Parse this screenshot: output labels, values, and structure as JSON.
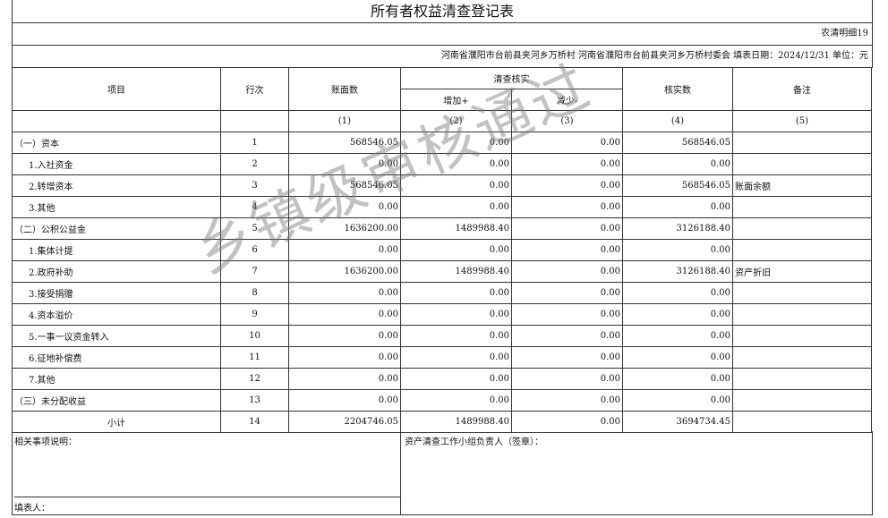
{
  "title": "所有者权益清查登记表",
  "code": "农清明细19",
  "info": "河南省濮阳市台前县夹河乡万桥村 河南省濮阳市台前县夹河乡万桥村委会 填表日期：2024/12/31 单位：元",
  "headers": {
    "item": "项目",
    "line": "行次",
    "book": "账面数",
    "check": "清查核实",
    "inc": "增加+",
    "dec": "减少-",
    "verified": "核实数",
    "note": "备注"
  },
  "colnums": [
    "",
    "",
    "(1)",
    "(2)",
    "(3)",
    "(4)",
    "(5)"
  ],
  "rows": [
    {
      "item": "（一）资本",
      "line": "1",
      "book": "568546.05",
      "inc": "0.00",
      "dec": "0.00",
      "ver": "568546.05",
      "note": "",
      "ind": false
    },
    {
      "item": "1.入社资金",
      "line": "2",
      "book": "0.00",
      "inc": "0.00",
      "dec": "0.00",
      "ver": "0.00",
      "note": "",
      "ind": true
    },
    {
      "item": "2.转增资本",
      "line": "3",
      "book": "568546.05",
      "inc": "0.00",
      "dec": "0.00",
      "ver": "568546.05",
      "note": "账面余额",
      "ind": true
    },
    {
      "item": "3.其他",
      "line": "4",
      "book": "0.00",
      "inc": "0.00",
      "dec": "0.00",
      "ver": "0.00",
      "note": "",
      "ind": true
    },
    {
      "item": "（二）公积公益金",
      "line": "5",
      "book": "1636200.00",
      "inc": "1489988.40",
      "dec": "0.00",
      "ver": "3126188.40",
      "note": "",
      "ind": false
    },
    {
      "item": "1.集体计提",
      "line": "6",
      "book": "0.00",
      "inc": "0.00",
      "dec": "0.00",
      "ver": "0.00",
      "note": "",
      "ind": true
    },
    {
      "item": "2.政府补助",
      "line": "7",
      "book": "1636200.00",
      "inc": "1489988.40",
      "dec": "0.00",
      "ver": "3126188.40",
      "note": "资产折旧",
      "ind": true
    },
    {
      "item": "3.接受捐赠",
      "line": "8",
      "book": "0.00",
      "inc": "0.00",
      "dec": "0.00",
      "ver": "0.00",
      "note": "",
      "ind": true
    },
    {
      "item": "4.资本溢价",
      "line": "9",
      "book": "0.00",
      "inc": "0.00",
      "dec": "0.00",
      "ver": "0.00",
      "note": "",
      "ind": true
    },
    {
      "item": "5.一事一议资金转入",
      "line": "10",
      "book": "0.00",
      "inc": "0.00",
      "dec": "0.00",
      "ver": "0.00",
      "note": "",
      "ind": true
    },
    {
      "item": "6.征地补偿费",
      "line": "11",
      "book": "0.00",
      "inc": "0.00",
      "dec": "0.00",
      "ver": "0.00",
      "note": "",
      "ind": true
    },
    {
      "item": "7.其他",
      "line": "12",
      "book": "0.00",
      "inc": "0.00",
      "dec": "0.00",
      "ver": "0.00",
      "note": "",
      "ind": true
    },
    {
      "item": "（三）未分配收益",
      "line": "13",
      "book": "0.00",
      "inc": "0.00",
      "dec": "0.00",
      "ver": "0.00",
      "note": "",
      "ind": false
    },
    {
      "item": "小计",
      "line": "14",
      "book": "2204746.05",
      "inc": "1489988.40",
      "dec": "0.00",
      "ver": "3694734.45",
      "note": "",
      "ind": false,
      "center": true
    }
  ],
  "footer": {
    "related": "相关事项说明：",
    "filler": "填表人：",
    "sign": "资产清查工作小组负责人（签章）："
  },
  "watermark": "乡镇级审核通过"
}
